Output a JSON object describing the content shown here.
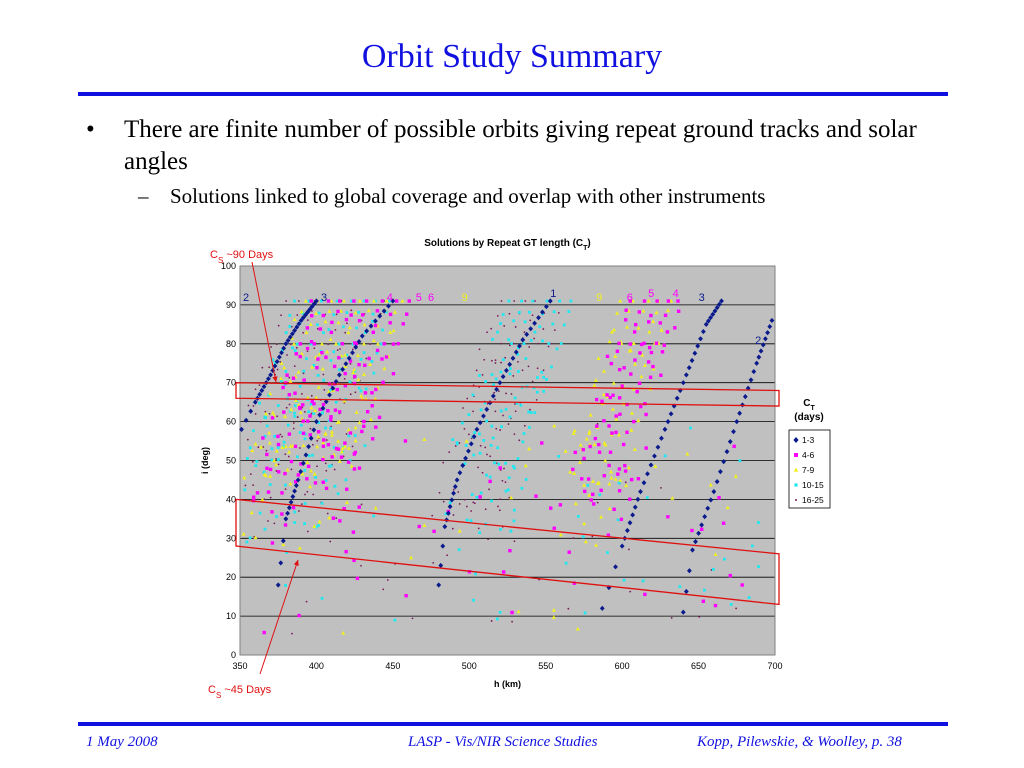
{
  "slide": {
    "title": "Orbit Study Summary",
    "bullet_marker": "•",
    "bullet": "There are finite number of possible orbits giving repeat ground tracks and solar angles",
    "sub_marker": "–",
    "sub_bullet": "Solutions linked to global coverage and overlap with other instruments"
  },
  "footer": {
    "date": "1 May 2008",
    "center": "LASP - Vis/NIR Science Studies",
    "right": "Kopp, Pilewskie, & Woolley, p. 38"
  },
  "chart_data": {
    "type": "scatter",
    "title": "Solutions by Repeat GT length (C",
    "title_sub": "T",
    "title_end": ")",
    "xlabel": "h (km)",
    "ylabel": "i (deg)",
    "xlim": [
      350,
      700
    ],
    "ylim": [
      0,
      100
    ],
    "x_ticks": [
      350,
      400,
      450,
      500,
      550,
      600,
      650,
      700
    ],
    "y_ticks": [
      0,
      10,
      20,
      30,
      40,
      50,
      60,
      70,
      80,
      90,
      100
    ],
    "grid": true,
    "legend_position": "right",
    "legend_title": "C",
    "legend_title_sub": "T",
    "legend_title_line2": "(days)",
    "series": [
      {
        "name": "1-3",
        "marker": "diamond",
        "color": "#0a1a8c"
      },
      {
        "name": "4-6",
        "marker": "square",
        "color": "#ff00ff"
      },
      {
        "name": "7-9",
        "marker": "triangle",
        "color": "#f0f020"
      },
      {
        "name": "10-15",
        "marker": "x",
        "color": "#20e8f0"
      },
      {
        "name": "16-25",
        "marker": "dot",
        "color": "#7a1a5a"
      }
    ],
    "curves_1_3": [
      [
        [
          351,
          58
        ],
        [
          360,
          65
        ],
        [
          370,
          72
        ],
        [
          380,
          80
        ],
        [
          390,
          86
        ],
        [
          400,
          91
        ]
      ],
      [
        [
          375,
          18
        ],
        [
          380,
          35
        ],
        [
          388,
          45
        ],
        [
          400,
          60
        ],
        [
          415,
          72
        ],
        [
          430,
          82
        ],
        [
          450,
          91
        ]
      ],
      [
        [
          480,
          18
        ],
        [
          484,
          33
        ],
        [
          492,
          45
        ],
        [
          505,
          58
        ],
        [
          520,
          70
        ],
        [
          535,
          81
        ],
        [
          553,
          91
        ]
      ],
      [
        [
          587,
          12
        ],
        [
          600,
          28
        ],
        [
          612,
          42
        ],
        [
          628,
          58
        ],
        [
          642,
          72
        ],
        [
          655,
          85
        ],
        [
          665,
          91
        ]
      ],
      [
        [
          640,
          11
        ],
        [
          646,
          27
        ],
        [
          660,
          42
        ],
        [
          675,
          60
        ],
        [
          688,
          75
        ],
        [
          698,
          86
        ]
      ]
    ],
    "mode_labels": [
      {
        "text": "2",
        "x": 354,
        "y": 91,
        "color": "#0a1a8c"
      },
      {
        "text": "3",
        "x": 405,
        "y": 91,
        "color": "#0a1a8c"
      },
      {
        "text": "4",
        "x": 448,
        "y": 91,
        "color": "#ff00ff"
      },
      {
        "text": "5",
        "x": 467,
        "y": 91,
        "color": "#ff00ff"
      },
      {
        "text": "6",
        "x": 475,
        "y": 91,
        "color": "#ff00ff"
      },
      {
        "text": "9",
        "x": 497,
        "y": 91,
        "color": "#f0f020"
      },
      {
        "text": "1",
        "x": 555,
        "y": 92,
        "color": "#0a1a8c"
      },
      {
        "text": "9",
        "x": 585,
        "y": 91,
        "color": "#f0f020"
      },
      {
        "text": "6",
        "x": 605,
        "y": 91,
        "color": "#ff00ff"
      },
      {
        "text": "5",
        "x": 619,
        "y": 92,
        "color": "#ff00ff"
      },
      {
        "text": "4",
        "x": 635,
        "y": 92,
        "color": "#ff00ff"
      },
      {
        "text": "3",
        "x": 652,
        "y": 91,
        "color": "#0a1a8c"
      },
      {
        "text": "2",
        "x": 689,
        "y": 80,
        "color": "#0a1a8c"
      }
    ],
    "annotations": [
      {
        "text": "C",
        "sub": "S",
        "rest": " ~90 Days",
        "position": "top-left"
      },
      {
        "text": "C",
        "sub": "S",
        "rest": " ~45 Days",
        "position": "bottom-left"
      }
    ],
    "highlight_bands": [
      {
        "x1": 350,
        "y1_left": 70,
        "y1_right": 68,
        "y2_left": 66,
        "y2_right": 64
      },
      {
        "x1": 350,
        "y1_left": 40,
        "y1_right": 26,
        "y2_left": 28,
        "y2_right": 13
      }
    ]
  }
}
